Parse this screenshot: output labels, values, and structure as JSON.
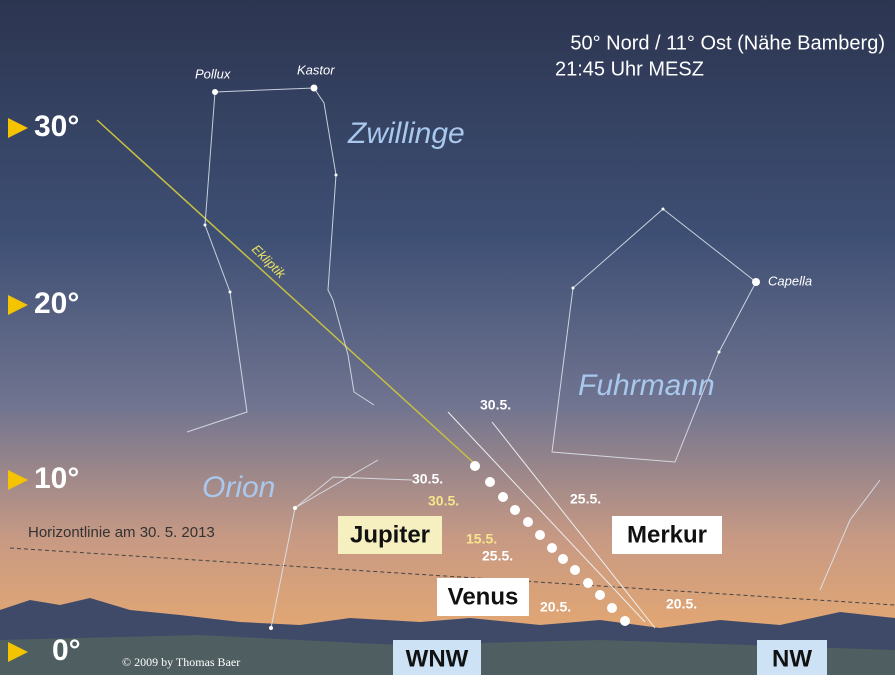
{
  "header": {
    "location": "50° Nord / 11° Ost (Nähe Bamberg)",
    "time": "21:45 Uhr MESZ"
  },
  "altitudes": [
    "30°",
    "20°",
    "10°",
    "0°"
  ],
  "stars": [
    "Pollux",
    "Kastor",
    "Capella"
  ],
  "constellations": [
    "Zwillinge",
    "Fuhrmann",
    "Orion"
  ],
  "ecliptic": "Ekliptik",
  "horizon": "Horizontlinie am 30. 5. 2013",
  "planets": [
    "Jupiter",
    "Merkur",
    "Venus"
  ],
  "dates": [
    "30.5.",
    "30.5.",
    "30.5.",
    "15.5.",
    "25.5.",
    "25.5.",
    "20.5.",
    "20.5."
  ],
  "directions": [
    "WNW",
    "NW"
  ],
  "credit": "© 2009 by Thomas Baer"
}
